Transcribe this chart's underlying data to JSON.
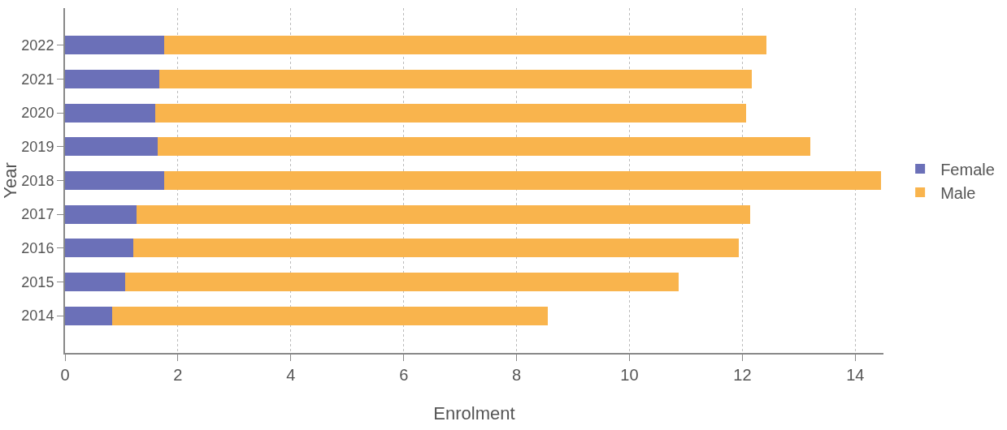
{
  "chart_data": {
    "type": "bar",
    "orientation": "horizontal",
    "stacked": true,
    "xlabel": "Enrolment",
    "ylabel": "Year",
    "categories": [
      "2022",
      "2021",
      "2020",
      "2019",
      "2018",
      "2017",
      "2016",
      "2015",
      "2014"
    ],
    "series": [
      {
        "name": "Female",
        "color": "#6b70b8",
        "values": [
          1.75,
          1.67,
          1.6,
          1.64,
          1.76,
          1.26,
          1.21,
          1.06,
          0.83
        ]
      },
      {
        "name": "Male",
        "color": "#f9b44d",
        "values": [
          10.68,
          10.5,
          10.46,
          11.56,
          12.7,
          10.88,
          10.72,
          9.81,
          7.72
        ]
      }
    ],
    "xlim": [
      0,
      14.5
    ],
    "xticks": [
      0,
      2,
      4,
      6,
      8,
      10,
      12,
      14
    ],
    "grid": "x",
    "legend": "right"
  }
}
